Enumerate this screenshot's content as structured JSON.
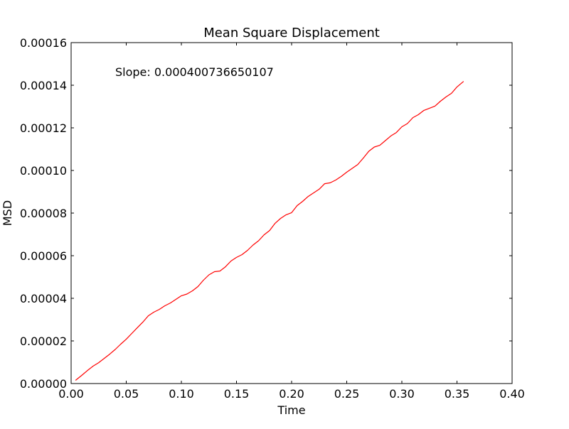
{
  "chart_data": {
    "type": "line",
    "title": "Mean Square Displacement",
    "xlabel": "Time",
    "ylabel": "MSD",
    "xlim": [
      0.0,
      0.4
    ],
    "ylim": [
      0.0,
      0.00016
    ],
    "xticks": [
      "0.00",
      "0.05",
      "0.10",
      "0.15",
      "0.20",
      "0.25",
      "0.30",
      "0.35",
      "0.40"
    ],
    "yticks": [
      "0.00000",
      "0.00002",
      "0.00004",
      "0.00006",
      "0.00008",
      "0.00010",
      "0.00012",
      "0.00014",
      "0.00016"
    ],
    "grid": false,
    "annotation": "Slope: 0.000400736650107",
    "series": [
      {
        "color": "#ff0000",
        "x": [
          0.004,
          0.01,
          0.015,
          0.02,
          0.025,
          0.03,
          0.035,
          0.04,
          0.045,
          0.05,
          0.055,
          0.06,
          0.065,
          0.07,
          0.075,
          0.08,
          0.085,
          0.09,
          0.095,
          0.1,
          0.105,
          0.11,
          0.115,
          0.12,
          0.125,
          0.13,
          0.135,
          0.14,
          0.145,
          0.15,
          0.155,
          0.16,
          0.165,
          0.17,
          0.175,
          0.18,
          0.185,
          0.19,
          0.195,
          0.2,
          0.205,
          0.21,
          0.215,
          0.22,
          0.225,
          0.23,
          0.235,
          0.24,
          0.245,
          0.25,
          0.255,
          0.26,
          0.265,
          0.27,
          0.275,
          0.28,
          0.285,
          0.29,
          0.295,
          0.3,
          0.305,
          0.31,
          0.315,
          0.32,
          0.325,
          0.33,
          0.335,
          0.34,
          0.345,
          0.35,
          0.356
        ],
        "y": [
          1.5e-06,
          4e-06,
          6.2e-06,
          8.2e-06,
          9.8e-06,
          1.18e-05,
          1.38e-05,
          1.6e-05,
          1.85e-05,
          2.08e-05,
          2.35e-05,
          2.62e-05,
          2.88e-05,
          3.18e-05,
          3.35e-05,
          3.48e-05,
          3.65e-05,
          3.78e-05,
          3.95e-05,
          4.12e-05,
          4.2e-05,
          4.35e-05,
          4.55e-05,
          4.85e-05,
          5.1e-05,
          5.25e-05,
          5.28e-05,
          5.48e-05,
          5.75e-05,
          5.92e-05,
          6.05e-05,
          6.25e-05,
          6.5e-05,
          6.7e-05,
          6.98e-05,
          7.18e-05,
          7.52e-05,
          7.75e-05,
          7.92e-05,
          8.02e-05,
          8.35e-05,
          8.55e-05,
          8.78e-05,
          8.95e-05,
          9.12e-05,
          9.38e-05,
          9.42e-05,
          9.55e-05,
          9.72e-05,
          9.92e-05,
          0.000101,
          0.0001028,
          0.0001058,
          0.000109,
          0.000111,
          0.0001118,
          0.000114,
          0.0001162,
          0.0001178,
          0.0001205,
          0.000122,
          0.0001248,
          0.0001262,
          0.0001282,
          0.0001292,
          0.0001302,
          0.0001325,
          0.0001345,
          0.0001362,
          0.0001392,
          0.0001418
        ]
      }
    ]
  }
}
